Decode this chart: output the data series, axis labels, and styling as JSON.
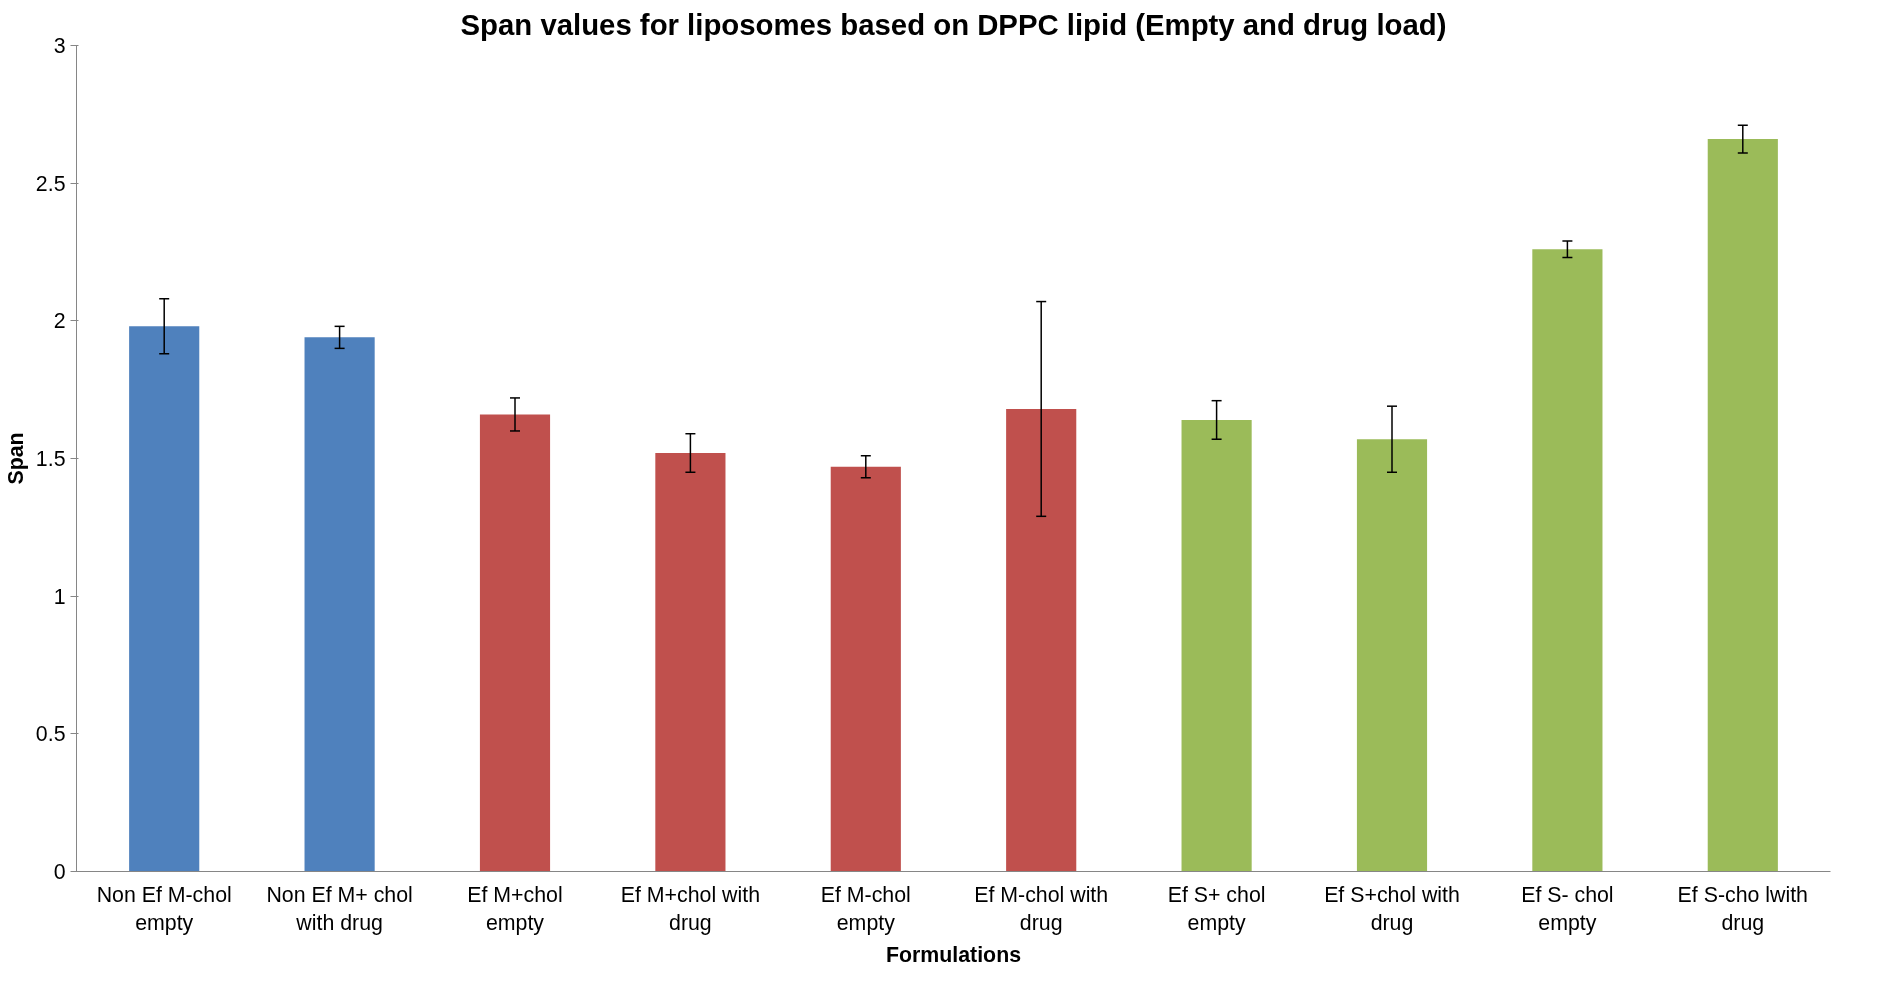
{
  "chart_data": {
    "type": "bar",
    "title": "Span values for liposomes based on DPPC lipid (Empty and drug load)",
    "xlabel": "Formulations",
    "ylabel": "Span",
    "categories": [
      "Non Ef M-chol empty",
      "Non Ef M+ chol with drug",
      "Ef M+chol empty",
      "Ef M+chol with drug",
      "Ef M-chol empty",
      "Ef M-chol with drug",
      "Ef S+ chol empty",
      "Ef S+chol with drug",
      "Ef S- chol empty",
      "Ef S-cho lwith drug"
    ],
    "values": [
      1.98,
      1.94,
      1.66,
      1.52,
      1.47,
      1.68,
      1.64,
      1.57,
      2.26,
      2.66
    ],
    "errors": [
      0.1,
      0.04,
      0.06,
      0.07,
      0.04,
      0.39,
      0.07,
      0.12,
      0.03,
      0.05
    ],
    "colors": [
      "#4f81bd",
      "#4f81bd",
      "#c0504d",
      "#c0504d",
      "#c0504d",
      "#c0504d",
      "#9bbb59",
      "#9bbb59",
      "#9bbb59",
      "#9bbb59"
    ],
    "ylim": [
      0,
      3
    ],
    "yticks": [
      0,
      0.5,
      1,
      1.5,
      2,
      2.5,
      3
    ],
    "grid": false
  }
}
